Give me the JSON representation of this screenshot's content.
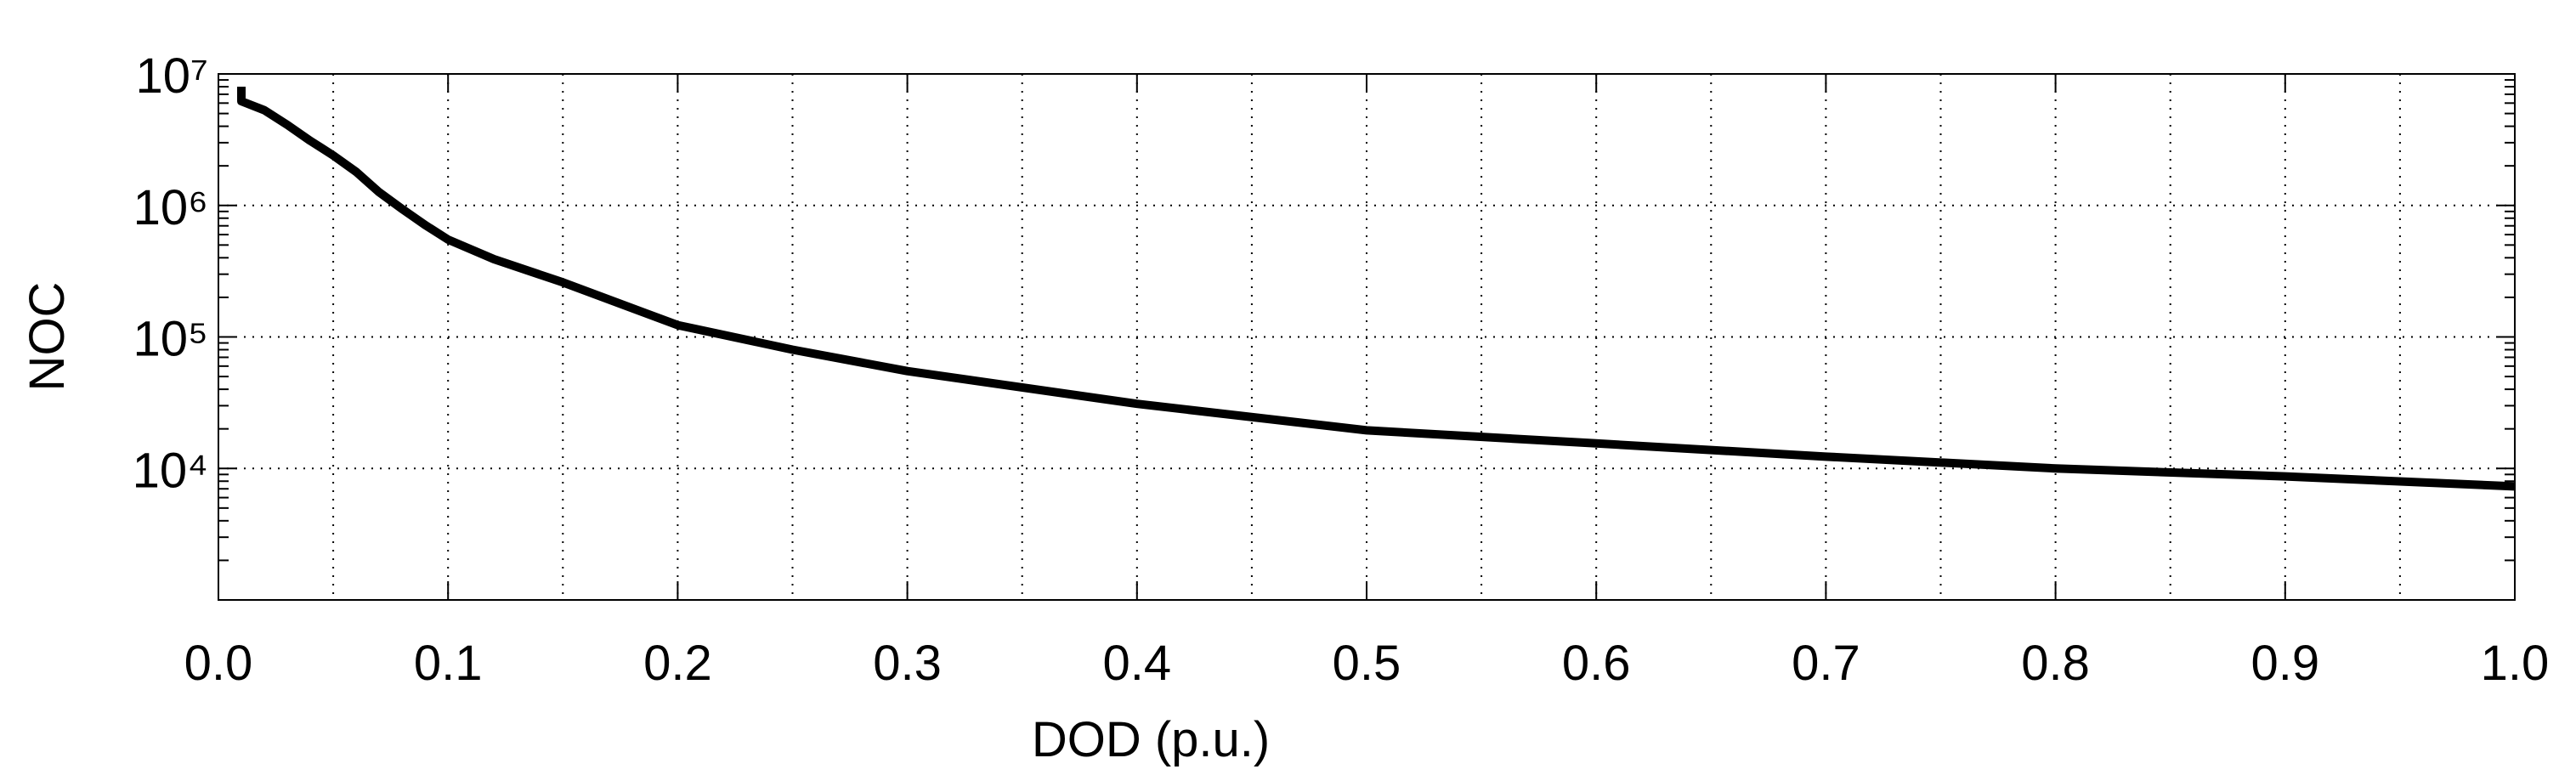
{
  "chart_data": {
    "type": "line",
    "x_label": "DOD (p.u.)",
    "y_label": "NOC",
    "x": [
      0.01,
      0.01,
      0.02,
      0.03,
      0.04,
      0.05,
      0.06,
      0.07,
      0.08,
      0.09,
      0.1,
      0.12,
      0.15,
      0.2,
      0.25,
      0.3,
      0.4,
      0.5,
      0.6,
      0.7,
      0.8,
      0.9,
      1.0
    ],
    "series": [
      {
        "color": "#000000",
        "values": [
          8000000,
          6200000,
          5300000,
          4100000,
          3100000,
          2400000,
          1800000,
          1260000,
          940000,
          710000,
          550000,
          390000,
          260000,
          123000,
          80000,
          55000,
          31000,
          19500,
          15500,
          12300,
          10000,
          8700,
          7300
        ]
      }
    ],
    "xlim": [
      0,
      1
    ],
    "ylim": [
      1000,
      10000000
    ],
    "y_scale": "log",
    "xticks": [
      {
        "value": 0,
        "label": "0.0"
      },
      0.1,
      0.2,
      0.3,
      0.4,
      0.5,
      0.6,
      0.7,
      0.8,
      0.9,
      {
        "value": 1,
        "label": "1.0"
      }
    ],
    "yticks": [
      {
        "value": 10000,
        "label": "10⁴"
      },
      {
        "value": 100000,
        "label": "10⁵"
      },
      {
        "value": 1000000,
        "label": "10⁶"
      },
      {
        "value": 10000000,
        "label": "10⁷"
      }
    ],
    "xgrid": [
      0.05,
      0.1,
      0.15,
      0.2,
      0.25,
      0.3,
      0.35,
      0.4,
      0.45,
      0.5,
      0.55,
      0.6,
      0.65,
      0.7,
      0.75,
      0.8,
      0.85,
      0.9,
      0.95
    ],
    "grid": true
  }
}
